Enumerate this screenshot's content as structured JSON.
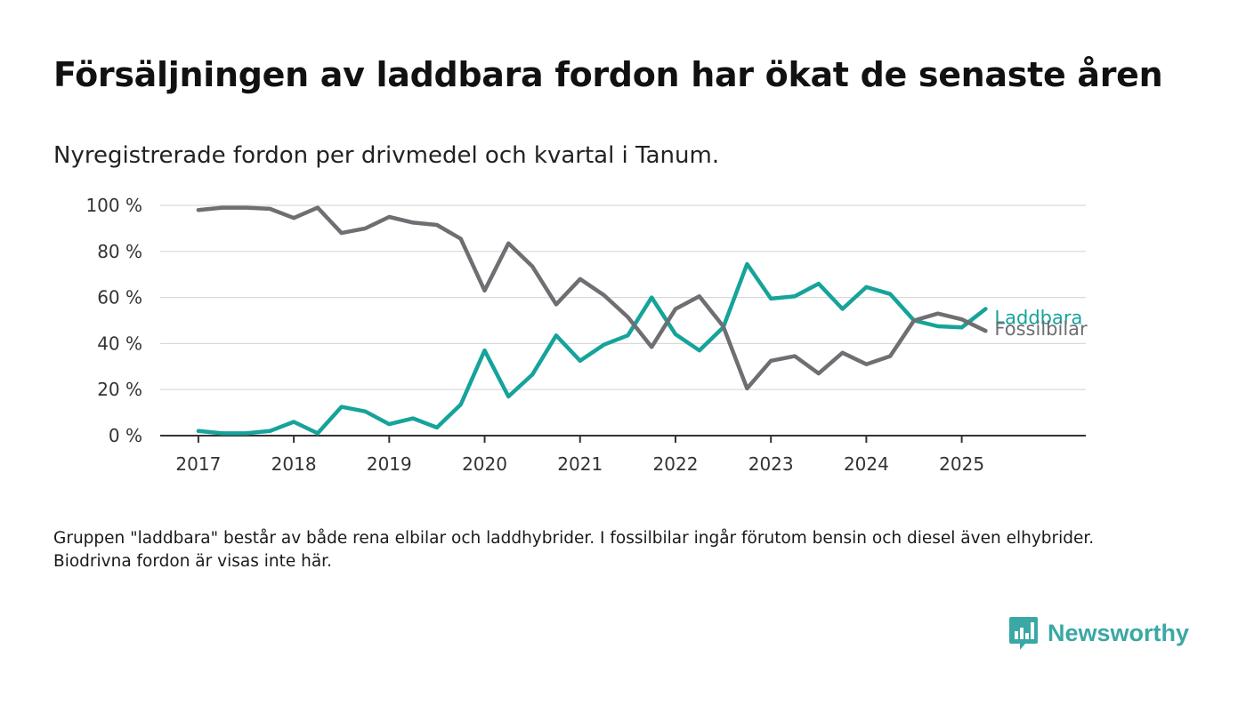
{
  "header": {
    "title": "Försäljningen av laddbara fordon har ökat de senaste åren",
    "subtitle": "Nyregistrerade fordon per drivmedel och kvartal i Tanum."
  },
  "footnote": "Gruppen \"laddbara\" består av både rena elbilar och laddhybrider. I fossilbilar ingår förutom bensin och diesel även elhybrider. Biodrivna fordon är visas inte här.",
  "brand": {
    "name": "Newsworthy",
    "color": "#3aa8a4"
  },
  "chart_data": {
    "type": "line",
    "x_unit": "year (quarterly points)",
    "x_ticks": [
      2017,
      2018,
      2019,
      2020,
      2021,
      2022,
      2023,
      2024,
      2025
    ],
    "y_ticks": [
      0,
      20,
      40,
      60,
      80,
      100
    ],
    "y_tick_suffix": " %",
    "ylim": [
      0,
      100
    ],
    "xlim": [
      2016.6,
      2026.3
    ],
    "grid": true,
    "x": [
      2017.0,
      2017.25,
      2017.5,
      2017.75,
      2018.0,
      2018.25,
      2018.5,
      2018.75,
      2019.0,
      2019.25,
      2019.5,
      2019.75,
      2020.0,
      2020.25,
      2020.5,
      2020.75,
      2021.0,
      2021.25,
      2021.5,
      2021.75,
      2022.0,
      2022.25,
      2022.5,
      2022.75,
      2023.0,
      2023.25,
      2023.5,
      2023.75,
      2024.0,
      2024.25,
      2024.5,
      2024.75,
      2025.0,
      2025.25
    ],
    "series": [
      {
        "name": "Fossilbilar",
        "color": "#6e6e73",
        "values": [
          98,
          99,
          99,
          98.5,
          94.5,
          99,
          88,
          90,
          95,
          92.5,
          91.5,
          85.5,
          63,
          83.5,
          73.5,
          57,
          68,
          61,
          51.5,
          38.5,
          55,
          60.5,
          47.5,
          20.5,
          32.5,
          34.5,
          27,
          36,
          31,
          34.5,
          50,
          53,
          50.5,
          45.5
        ]
      },
      {
        "name": "Laddbara",
        "color": "#16a39a",
        "values": [
          2,
          1,
          1,
          2,
          6,
          1,
          12.5,
          10.5,
          5,
          7.5,
          3.5,
          13.5,
          37,
          17,
          26.5,
          43.5,
          32.5,
          39.5,
          43.5,
          60,
          44,
          37,
          47,
          74.5,
          59.5,
          60.5,
          66,
          55,
          64.5,
          61.5,
          50,
          47.5,
          47,
          55
        ]
      }
    ]
  }
}
